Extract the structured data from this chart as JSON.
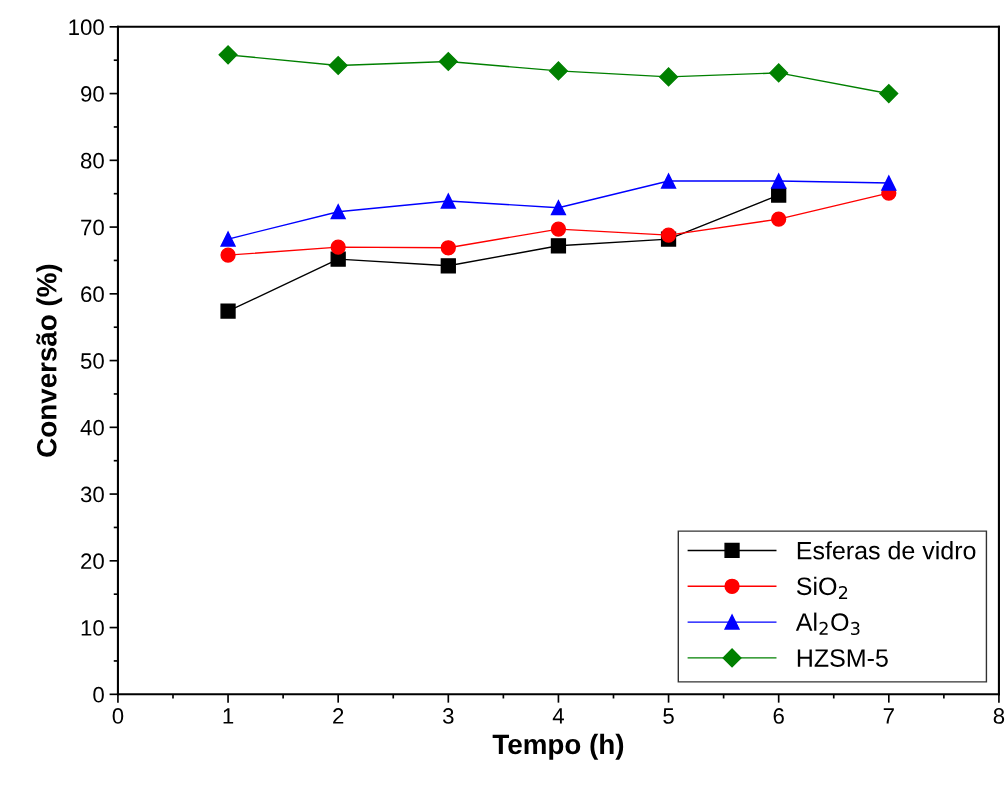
{
  "chart_data": {
    "type": "line",
    "xlabel": "Tempo (h)",
    "ylabel": "Conversão (%)",
    "x": [
      1,
      2,
      3,
      4,
      5,
      6,
      7
    ],
    "xlim": [
      0,
      8
    ],
    "xticks": [
      0,
      1,
      2,
      3,
      4,
      5,
      6,
      7,
      8
    ],
    "ylim": [
      0,
      100
    ],
    "yticks": [
      0,
      10,
      20,
      30,
      40,
      50,
      60,
      70,
      80,
      90,
      100
    ],
    "grid": false,
    "legend": "bottom right",
    "line_style": "solid",
    "series": [
      {
        "name": "Esferas de vidro",
        "color": "#000000",
        "marker": "square",
        "values": [
          57.4,
          65.2,
          64.2,
          67.2,
          68.2,
          74.8,
          null
        ]
      },
      {
        "name": "SiO$_{2}$",
        "color": "#ff0000",
        "marker": "circle",
        "values": [
          65.8,
          67.0,
          66.9,
          69.7,
          68.8,
          71.2,
          75.1
        ]
      },
      {
        "name": "Al$_{2}$O$_{3}$",
        "color": "#0000ff",
        "marker": "triangle",
        "values": [
          68.2,
          72.3,
          73.9,
          72.9,
          76.9,
          76.9,
          76.6
        ]
      },
      {
        "name": "HZSM-5",
        "color": "#008000",
        "marker": "diamond",
        "values": [
          95.8,
          94.2,
          94.8,
          93.4,
          92.5,
          93.1,
          90.0
        ]
      }
    ]
  }
}
